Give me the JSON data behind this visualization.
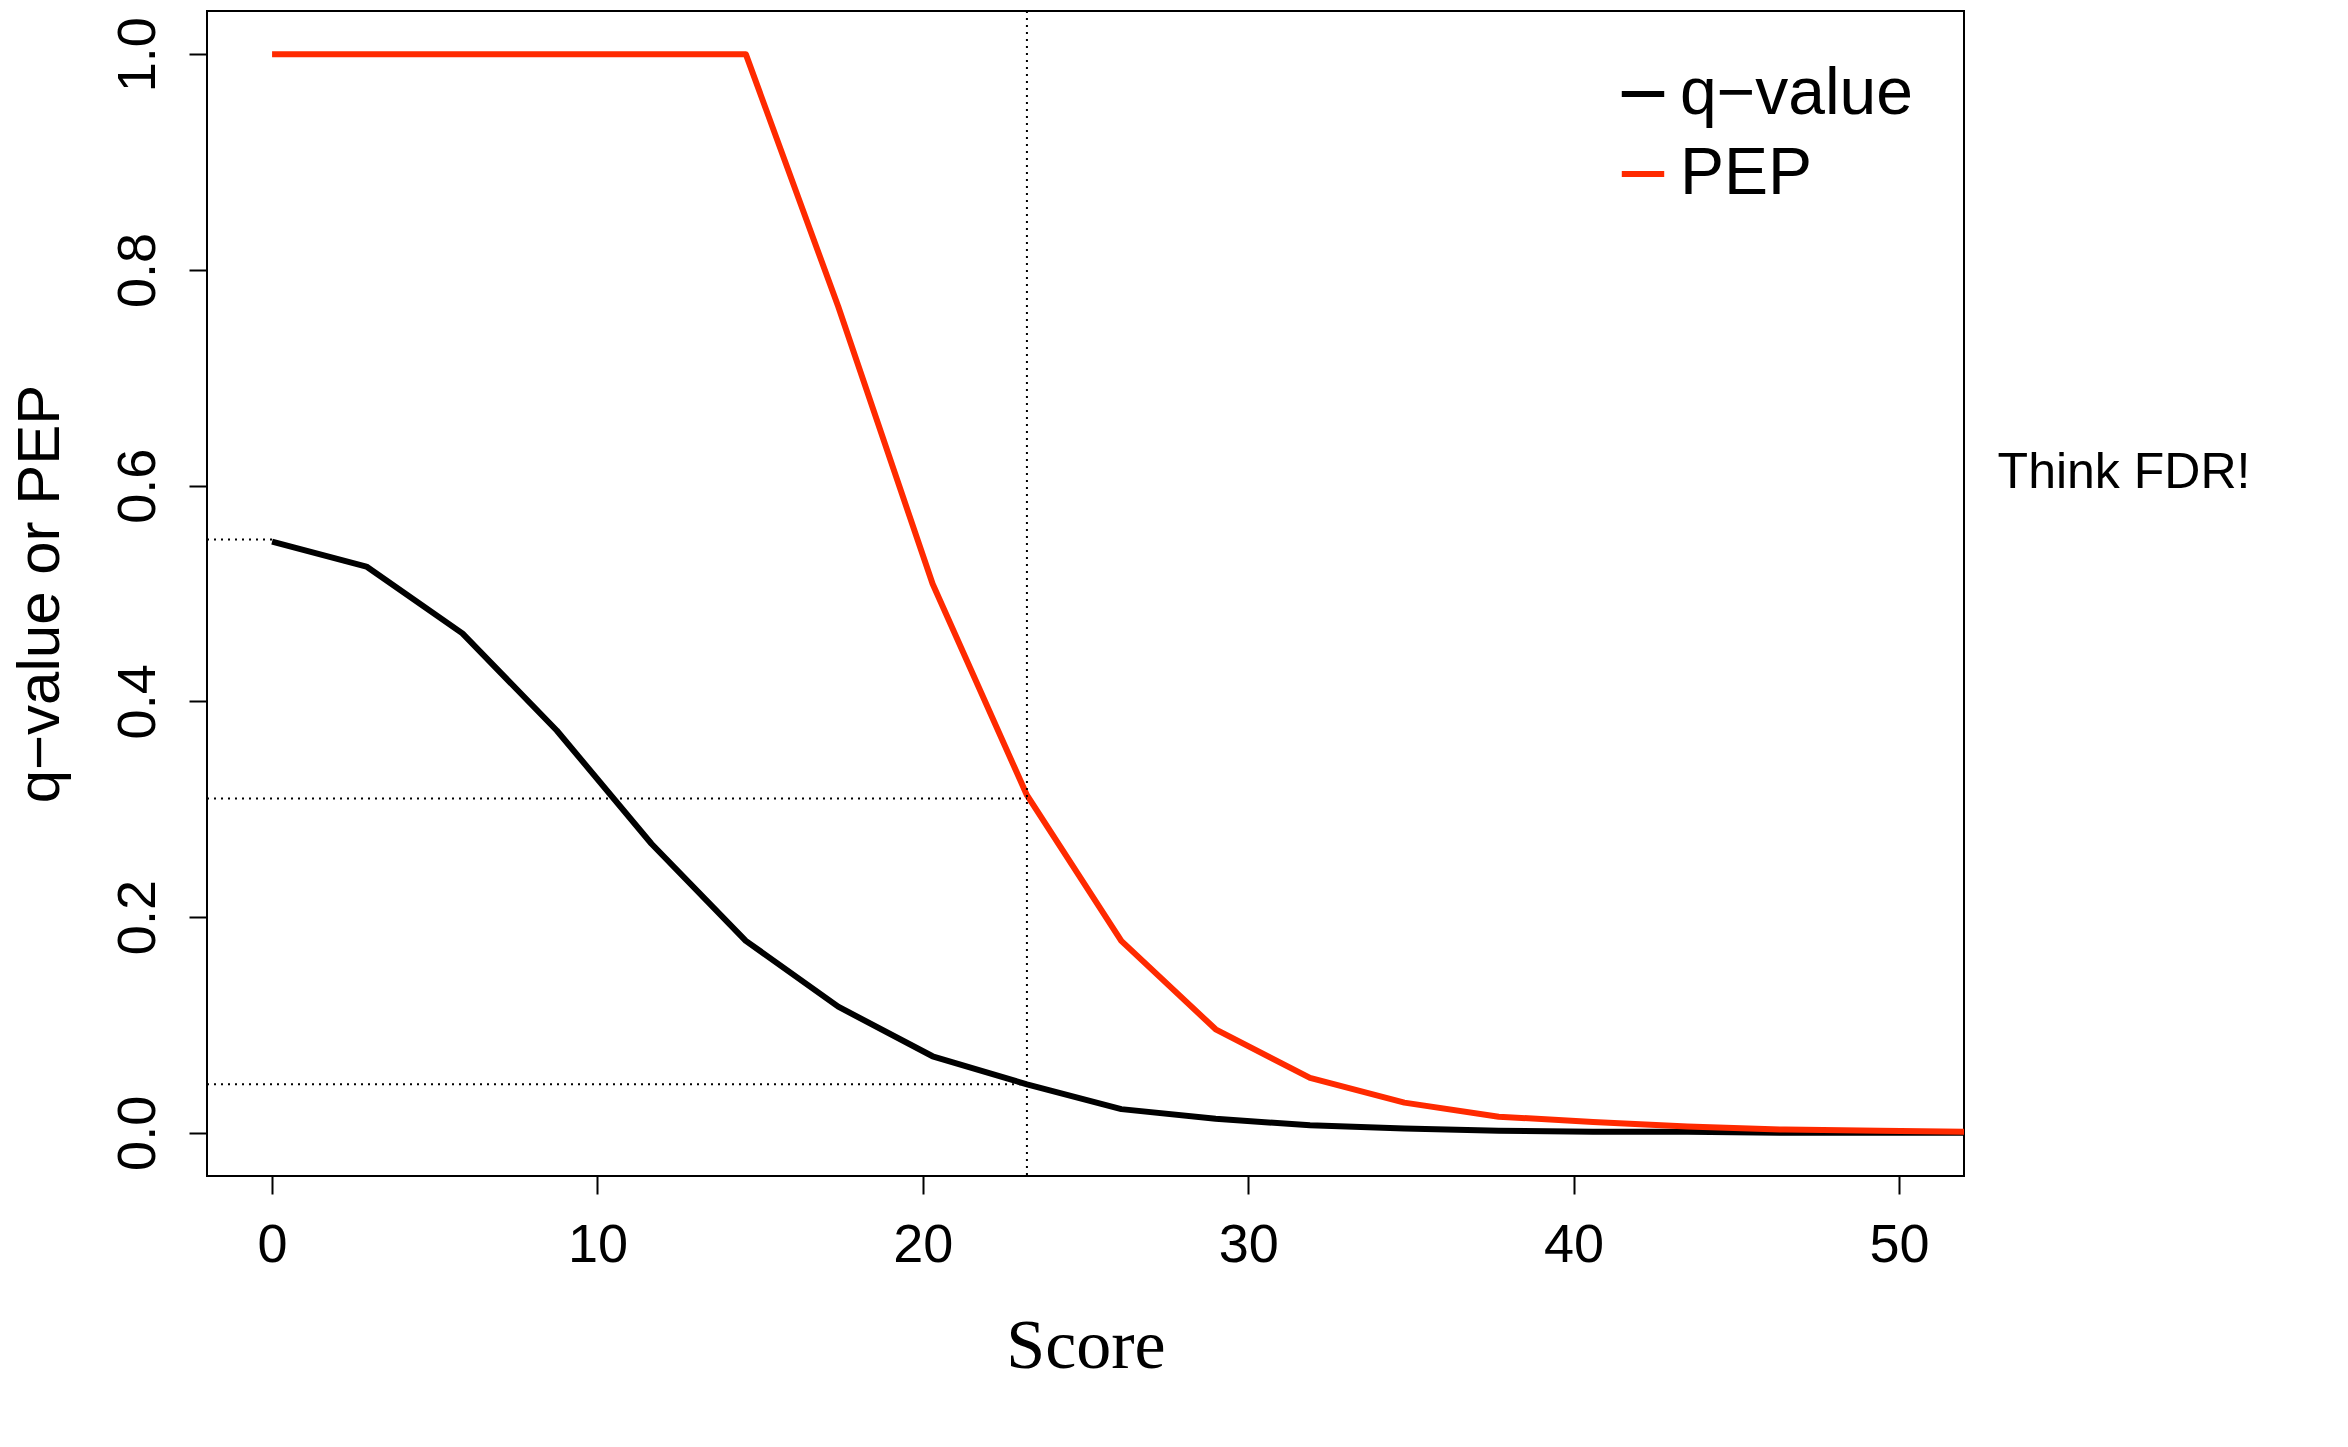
{
  "chart_data": {
    "type": "line",
    "xlabel": "Score",
    "ylabel": "q−value or PEP",
    "x": [
      0,
      2.9,
      5.85,
      8.75,
      11.66,
      14.56,
      17.4,
      20.3,
      23.2,
      26.1,
      29.0,
      31.9,
      34.8,
      37.7,
      40.6,
      43.5,
      46.5,
      49.4,
      52
    ],
    "series": [
      {
        "name": "q−value",
        "color": "#000000",
        "values": [
          0.548,
          0.525,
          0.463,
          0.373,
          0.268,
          0.178,
          0.117,
          0.071,
          0.045,
          0.022,
          0.013,
          0.007,
          0.004,
          0.002,
          0.001,
          0.001,
          0,
          0,
          0
        ]
      },
      {
        "name": "PEP",
        "color": "#ff2a00",
        "values": [
          1,
          1,
          1,
          1,
          1,
          1,
          0.766,
          0.509,
          0.313,
          0.178,
          0.096,
          0.051,
          0.028,
          0.015,
          0.01,
          0.006,
          0.003,
          0.002,
          0.001
        ]
      },
      {
        "color": "#000000",
        "x": [
          -2,
          0
        ],
        "values": [
          0.55,
          0.55
        ],
        "line_style": "dotted"
      }
    ],
    "xlim": [
      -2,
      52
    ],
    "ylim": [
      -0.04,
      1.04
    ],
    "xticks": [
      0,
      10,
      20,
      30,
      40,
      50
    ],
    "yticks": [
      {
        "value": 0,
        "label": "0.0"
      },
      {
        "value": 0.2,
        "label": "0.2"
      },
      {
        "value": 0.4,
        "label": "0.4"
      },
      {
        "value": 0.6,
        "label": "0.6"
      },
      {
        "value": 0.8,
        "label": "0.8"
      },
      {
        "value": 1,
        "label": "1.0"
      }
    ],
    "ref_lines": [
      {
        "axis": "x",
        "value": 23.2,
        "color": "#000000",
        "line_style": "dotted"
      },
      {
        "axis": "y",
        "value": 0.31,
        "color": "#000000",
        "line_style": "dotted"
      },
      {
        "axis": "y",
        "value": 0.045,
        "color": "#000000",
        "line_style": "dotted"
      }
    ],
    "annotations": [
      "Think FDR!"
    ],
    "legend": "top right",
    "grid": false,
    "marker": "none",
    "line_style": "solid"
  }
}
